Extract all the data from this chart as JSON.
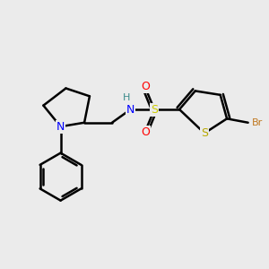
{
  "background_color": "#ebebeb",
  "bond_color": "#000000",
  "bond_width": 1.8,
  "atom_colors": {
    "N": "#0000ff",
    "S_sulfonamide": "#cccc00",
    "S_thiophene": "#b8a800",
    "O": "#ff0000",
    "Br": "#c07820",
    "H": "#3a8a8a",
    "C": "#000000"
  }
}
